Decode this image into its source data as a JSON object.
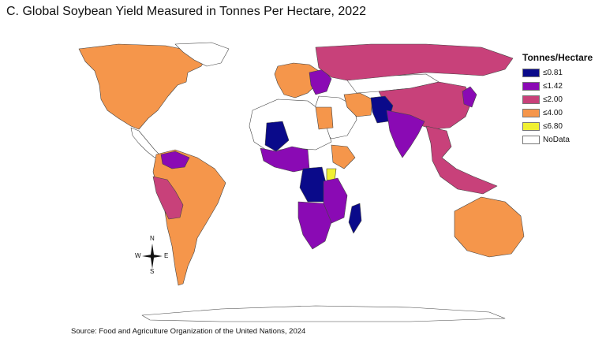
{
  "title": "C. Global Soybean Yield Measured in Tonnes Per Hectare, 2022",
  "source": "Source: Food and Agriculture Organization of the United Nations, 2024",
  "legend": {
    "title": "Tonnes/Hectare",
    "items": [
      {
        "label": "≤0.81",
        "color": "#0a0a8a"
      },
      {
        "label": "≤1.42",
        "color": "#8a0ab4"
      },
      {
        "label": "≤2.00",
        "color": "#c8417a"
      },
      {
        "label": "≤4.00",
        "color": "#f5964b"
      },
      {
        "label": "≤6.80",
        "color": "#f0f032"
      },
      {
        "label": "NoData",
        "color": "#ffffff"
      }
    ]
  },
  "compass": {
    "n": "N",
    "s": "S",
    "e": "E",
    "w": "W"
  },
  "regions": [
    {
      "name": "north-america",
      "class": "≤4.00"
    },
    {
      "name": "greenland",
      "class": "NoData"
    },
    {
      "name": "central-america",
      "class": "NoData"
    },
    {
      "name": "south-america-main",
      "class": "≤4.00"
    },
    {
      "name": "peru-bolivia",
      "class": "≤2.00"
    },
    {
      "name": "venezuela-colombia",
      "class": "≤1.42"
    },
    {
      "name": "western-europe",
      "class": "≤4.00"
    },
    {
      "name": "eastern-europe",
      "class": "≤1.42"
    },
    {
      "name": "russia",
      "class": "≤2.00"
    },
    {
      "name": "china",
      "class": "≤2.00"
    },
    {
      "name": "mongolia-kazakhstan",
      "class": "NoData"
    },
    {
      "name": "middle-east",
      "class": "NoData"
    },
    {
      "name": "iran",
      "class": "≤4.00"
    },
    {
      "name": "afghanistan-pakistan",
      "class": "≤0.81"
    },
    {
      "name": "india",
      "class": "≤1.42"
    },
    {
      "name": "southeast-asia",
      "class": "≤2.00"
    },
    {
      "name": "japan",
      "class": "≤1.42"
    },
    {
      "name": "australia",
      "class": "≤4.00"
    },
    {
      "name": "north-africa",
      "class": "NoData"
    },
    {
      "name": "mali",
      "class": "≤0.81"
    },
    {
      "name": "west-africa",
      "class": "≤1.42"
    },
    {
      "name": "central-africa",
      "class": "≤0.81"
    },
    {
      "name": "east-africa",
      "class": "≤1.42"
    },
    {
      "name": "ethiopia",
      "class": "≤4.00"
    },
    {
      "name": "uganda",
      "class": "≤6.80"
    },
    {
      "name": "southern-africa",
      "class": "≤1.42"
    },
    {
      "name": "madagascar",
      "class": "≤0.81"
    },
    {
      "name": "egypt",
      "class": "≤4.00"
    },
    {
      "name": "antarctica",
      "class": "NoData"
    }
  ]
}
